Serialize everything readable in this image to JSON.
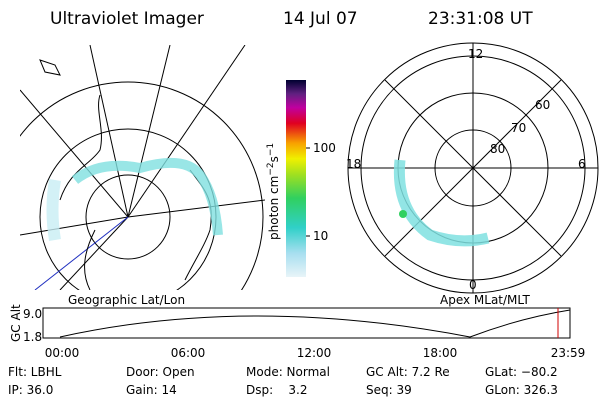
{
  "header": {
    "title": "Ultraviolet Imager",
    "date": "14 Jul 07",
    "time": "23:31:08 UT"
  },
  "colorbar": {
    "label": "photon cm",
    "exp1": "−2",
    "unit2": "s",
    "exp2": "−1",
    "ticks": [
      "100",
      "10"
    ]
  },
  "left_map": {
    "caption": "Geographic Lat/Lon"
  },
  "right_map": {
    "caption": "Apex MLat/MLT",
    "mlt_labels": [
      "12",
      "18",
      "6",
      "0"
    ],
    "lat_labels": [
      "60",
      "70",
      "80"
    ]
  },
  "altitude_plot": {
    "label": "GC Alt",
    "yticks": [
      "9.0",
      "1.8"
    ],
    "xticks": [
      "00:00",
      "06:00",
      "12:00",
      "18:00",
      "23:59"
    ]
  },
  "info": {
    "rows": [
      [
        "Flt: LBHL",
        "Door: Open",
        "Mode: Normal",
        "GC Alt: 7.2 Re",
        "GLat: −80.2"
      ],
      [
        "IP: 36.0",
        "Gain: 14",
        "Dsp:    3.2",
        "Seq: 39",
        "GLon: 326.3"
      ]
    ]
  }
}
